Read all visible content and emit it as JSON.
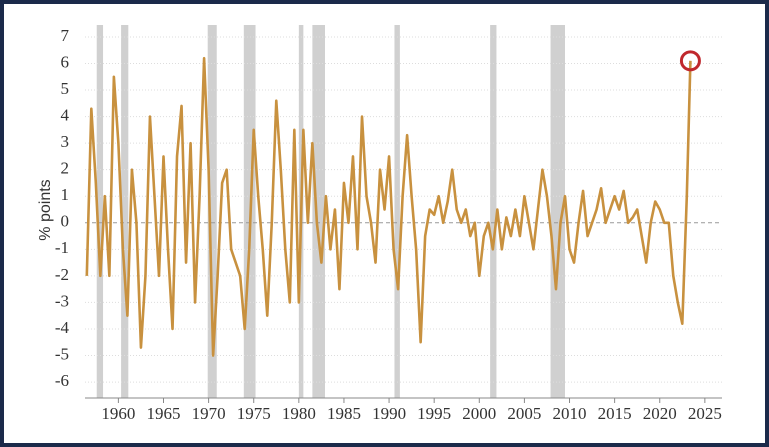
{
  "chart_data": {
    "type": "line",
    "y_label": "% points",
    "xlim": [
      1956.3,
      2026.9
    ],
    "ylim": [
      -6.6,
      7.45
    ],
    "xticks": [
      1960,
      1965,
      1970,
      1975,
      1980,
      1985,
      1990,
      1995,
      2000,
      2005,
      2010,
      2015,
      2020,
      2025
    ],
    "yticks": [
      -6,
      -5,
      -4,
      -3,
      -2,
      -1,
      0,
      1,
      2,
      3,
      4,
      5,
      6,
      7
    ],
    "grid": true,
    "shaded_periods": [
      [
        1957.6,
        1958.3
      ],
      [
        1960.3,
        1961.1
      ],
      [
        1969.9,
        1970.9
      ],
      [
        1973.9,
        1975.2
      ],
      [
        1980.0,
        1980.5
      ],
      [
        1981.5,
        1982.9
      ],
      [
        1990.6,
        1991.2
      ],
      [
        2001.2,
        2001.9
      ],
      [
        2007.9,
        2009.5
      ]
    ],
    "shade_color": "#d0d0d0",
    "highlight_color": "#c0282d",
    "series": [
      {
        "color": "#c8913f",
        "x": [
          1956.5,
          1957,
          1957.5,
          1958,
          1958.5,
          1959,
          1959.5,
          1960,
          1960.5,
          1961,
          1961.5,
          1962,
          1962.5,
          1963,
          1963.5,
          1964,
          1964.5,
          1965,
          1965.5,
          1966,
          1966.5,
          1967,
          1967.5,
          1968,
          1968.5,
          1969,
          1969.5,
          1970,
          1970.5,
          1971,
          1971.5,
          1972,
          1972.5,
          1973,
          1973.5,
          1974,
          1974.5,
          1975,
          1975.5,
          1976,
          1976.5,
          1977,
          1977.5,
          1978,
          1978.5,
          1979,
          1979.5,
          1980,
          1980.5,
          1981,
          1981.5,
          1982,
          1982.5,
          1983,
          1983.5,
          1984,
          1984.5,
          1985,
          1985.5,
          1986,
          1986.5,
          1987,
          1987.5,
          1988,
          1988.5,
          1989,
          1989.5,
          1990,
          1990.5,
          1991,
          1991.5,
          1992,
          1992.5,
          1993,
          1993.5,
          1994,
          1994.5,
          1995,
          1995.5,
          1996,
          1996.5,
          1997,
          1997.5,
          1998,
          1998.5,
          1999,
          1999.5,
          2000,
          2000.5,
          2001,
          2001.5,
          2002,
          2002.5,
          2003,
          2003.5,
          2004,
          2004.5,
          2005,
          2005.5,
          2006,
          2006.5,
          2007,
          2007.5,
          2008,
          2008.5,
          2009,
          2009.5,
          2010,
          2010.5,
          2011,
          2011.5,
          2012,
          2012.5,
          2013,
          2013.5,
          2014,
          2014.5,
          2015,
          2015.5,
          2016,
          2016.5,
          2017,
          2017.5,
          2018,
          2018.5,
          2019,
          2019.5,
          2020,
          2020.5,
          2021,
          2021.5,
          2022,
          2022.5,
          2023,
          2023.4
        ],
        "values": [
          -2,
          4.3,
          1.5,
          -2,
          1,
          -2,
          5.5,
          3,
          -1,
          -3.5,
          2,
          0,
          -4.7,
          -2,
          4,
          1,
          -2,
          2.5,
          -1,
          -4,
          2.5,
          4.4,
          -1.5,
          3,
          -3,
          1,
          6.2,
          2,
          -5,
          -2,
          1.5,
          2,
          -1,
          -1.5,
          -2,
          -4,
          -1,
          3.5,
          1,
          -1,
          -3.5,
          0,
          4.6,
          2,
          -1,
          -3,
          3.5,
          -3,
          3.5,
          0,
          3,
          0,
          -1.5,
          1,
          -1,
          0.5,
          -2.5,
          1.5,
          0,
          2.5,
          -1,
          4,
          1,
          0,
          -1.5,
          2,
          0.5,
          2.5,
          -1,
          -2.5,
          1,
          3.3,
          1,
          -1,
          -4.5,
          -0.5,
          0.5,
          0.3,
          1,
          0,
          0.8,
          2,
          0.5,
          0,
          0.5,
          -0.5,
          0,
          -2,
          -0.5,
          0,
          -1,
          0.5,
          -1,
          0.2,
          -0.5,
          0.5,
          -0.5,
          1,
          0,
          -1,
          0.5,
          2,
          1,
          -0.5,
          -2.5,
          0,
          1,
          -1,
          -1.5,
          0,
          1.2,
          -0.5,
          0,
          0.5,
          1.3,
          0,
          0.5,
          1,
          0.5,
          1.2,
          0,
          0.2,
          0.5,
          -0.5,
          -1.5,
          0,
          0.8,
          0.5,
          0,
          0,
          -2,
          -3,
          -3.8,
          1,
          6.1
        ]
      }
    ]
  }
}
